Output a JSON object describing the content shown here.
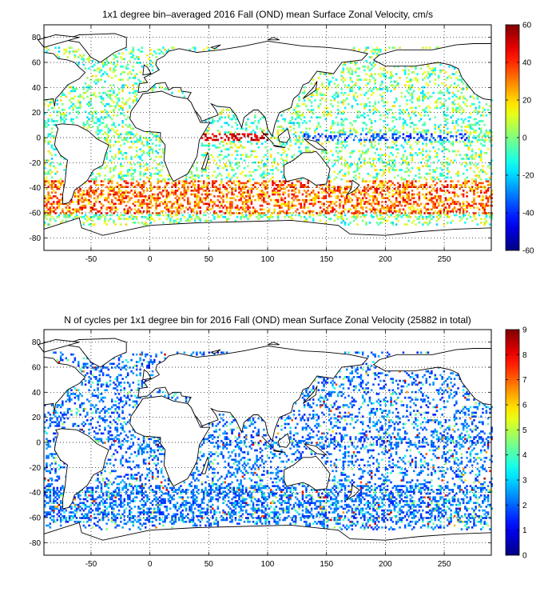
{
  "panels": [
    {
      "id": "zonal_velocity",
      "title": "1x1 degree bin–averaged 2016 Fall (OND) mean Surface Zonal Velocity, cm/s",
      "x_ticks": [
        "-50",
        "0",
        "50",
        "100",
        "150",
        "200",
        "250"
      ],
      "y_ticks": [
        "80",
        "60",
        "40",
        "20",
        "0",
        "-20",
        "-40",
        "-60",
        "-80"
      ],
      "colorbar_ticks": [
        "60",
        "40",
        "20",
        "0",
        "-20",
        "-40",
        "-60"
      ],
      "colorbar_range": [
        -60,
        60
      ],
      "colormap": "jet"
    },
    {
      "id": "cycle_count",
      "title": "N of cycles per 1x1 degree bin for 2016 Fall (OND) mean Surface Zonal Velocity (25882 in total)",
      "x_ticks": [
        "-50",
        "0",
        "50",
        "100",
        "150",
        "200",
        "250"
      ],
      "y_ticks": [
        "80",
        "60",
        "40",
        "20",
        "0",
        "-20",
        "-40",
        "-60",
        "-80"
      ],
      "colorbar_ticks": [
        "9",
        "8",
        "7",
        "6",
        "5",
        "4",
        "3",
        "2",
        "1",
        "0"
      ],
      "colorbar_range": [
        0,
        9
      ],
      "colormap": "jet"
    }
  ],
  "map_extent": {
    "lon": [
      -90,
      290
    ],
    "lat": [
      -90,
      90
    ]
  }
}
